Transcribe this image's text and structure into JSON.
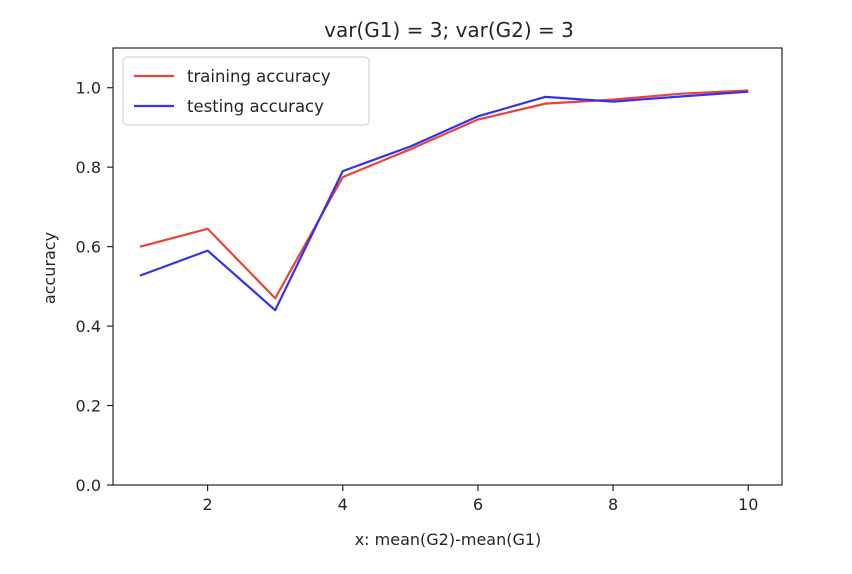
{
  "chart_data": {
    "type": "line",
    "title": "var(G1) = 3; var(G2) = 3",
    "xlabel": "x: mean(G2)-mean(G1)",
    "ylabel": "accuracy",
    "xlim": [
      0.6,
      10.5
    ],
    "ylim": [
      0.0,
      1.1
    ],
    "xticks": [
      2,
      4,
      6,
      8,
      10
    ],
    "yticks": [
      0.0,
      0.2,
      0.4,
      0.6,
      0.8,
      1.0
    ],
    "grid": false,
    "legend_position": "top-left",
    "x": [
      1,
      2,
      3,
      4,
      5,
      6,
      7,
      8,
      9,
      10
    ],
    "series": [
      {
        "name": "training accuracy",
        "color": "#e8443a",
        "values": [
          0.6,
          0.645,
          0.47,
          0.775,
          0.845,
          0.92,
          0.96,
          0.97,
          0.985,
          0.993
        ]
      },
      {
        "name": "testing accuracy",
        "color": "#3232f0",
        "values": [
          0.527,
          0.59,
          0.44,
          0.79,
          0.852,
          0.928,
          0.977,
          0.965,
          0.978,
          0.99
        ]
      }
    ]
  }
}
